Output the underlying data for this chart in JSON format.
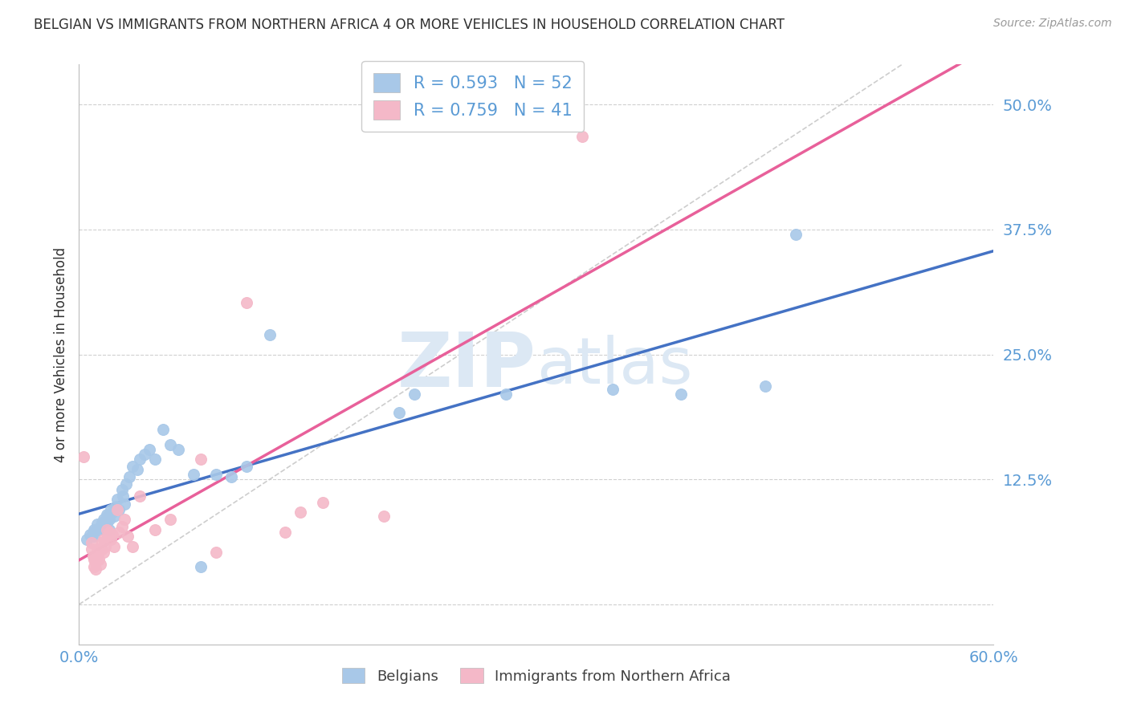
{
  "title": "BELGIAN VS IMMIGRANTS FROM NORTHERN AFRICA 4 OR MORE VEHICLES IN HOUSEHOLD CORRELATION CHART",
  "source": "Source: ZipAtlas.com",
  "ylabel": "4 or more Vehicles in Household",
  "x_min": 0.0,
  "x_max": 0.6,
  "y_min": -0.04,
  "y_max": 0.54,
  "yticks": [
    0.0,
    0.125,
    0.25,
    0.375,
    0.5
  ],
  "ytick_labels": [
    "",
    "12.5%",
    "25.0%",
    "37.5%",
    "50.0%"
  ],
  "xticks": [
    0.0,
    0.15,
    0.3,
    0.45,
    0.6
  ],
  "belgians_R": 0.593,
  "belgians_N": 52,
  "immigrants_R": 0.759,
  "immigrants_N": 41,
  "blue_scatter_color": "#a8c8e8",
  "blue_line_color": "#4472c4",
  "pink_scatter_color": "#f4b8c8",
  "pink_line_color": "#e8609a",
  "diag_color": "#c8c8c8",
  "watermark_zip": "ZIP",
  "watermark_atlas": "atlas",
  "watermark_color": "#dce8f4",
  "grid_color": "#d0d0d0",
  "axis_color": "#5b9bd5",
  "title_color": "#303030",
  "belgians_x": [
    0.005,
    0.007,
    0.008,
    0.009,
    0.01,
    0.01,
    0.012,
    0.013,
    0.014,
    0.015,
    0.015,
    0.016,
    0.016,
    0.017,
    0.018,
    0.018,
    0.019,
    0.02,
    0.02,
    0.021,
    0.022,
    0.023,
    0.024,
    0.025,
    0.026,
    0.028,
    0.029,
    0.03,
    0.031,
    0.033,
    0.035,
    0.038,
    0.04,
    0.043,
    0.046,
    0.05,
    0.055,
    0.06,
    0.065,
    0.075,
    0.08,
    0.09,
    0.1,
    0.11,
    0.125,
    0.21,
    0.22,
    0.28,
    0.35,
    0.395,
    0.45,
    0.47
  ],
  "belgians_y": [
    0.065,
    0.07,
    0.068,
    0.072,
    0.075,
    0.068,
    0.08,
    0.075,
    0.078,
    0.082,
    0.076,
    0.085,
    0.08,
    0.078,
    0.09,
    0.082,
    0.088,
    0.085,
    0.075,
    0.095,
    0.092,
    0.088,
    0.098,
    0.105,
    0.095,
    0.115,
    0.108,
    0.1,
    0.12,
    0.128,
    0.138,
    0.135,
    0.145,
    0.15,
    0.155,
    0.145,
    0.175,
    0.16,
    0.155,
    0.13,
    0.038,
    0.13,
    0.128,
    0.138,
    0.27,
    0.192,
    0.21,
    0.21,
    0.215,
    0.21,
    0.218,
    0.37
  ],
  "immigrants_x": [
    0.003,
    0.008,
    0.008,
    0.009,
    0.01,
    0.01,
    0.011,
    0.011,
    0.012,
    0.012,
    0.013,
    0.013,
    0.014,
    0.015,
    0.015,
    0.016,
    0.016,
    0.017,
    0.018,
    0.019,
    0.02,
    0.021,
    0.022,
    0.023,
    0.025,
    0.026,
    0.028,
    0.03,
    0.032,
    0.035,
    0.04,
    0.05,
    0.06,
    0.08,
    0.09,
    0.11,
    0.135,
    0.145,
    0.16,
    0.2,
    0.33
  ],
  "immigrants_y": [
    0.148,
    0.062,
    0.055,
    0.048,
    0.045,
    0.038,
    0.042,
    0.035,
    0.055,
    0.048,
    0.052,
    0.045,
    0.04,
    0.062,
    0.055,
    0.065,
    0.052,
    0.058,
    0.075,
    0.068,
    0.072,
    0.065,
    0.07,
    0.058,
    0.095,
    0.072,
    0.078,
    0.085,
    0.068,
    0.058,
    0.108,
    0.075,
    0.085,
    0.145,
    0.052,
    0.302,
    0.072,
    0.092,
    0.102,
    0.088,
    0.468
  ]
}
